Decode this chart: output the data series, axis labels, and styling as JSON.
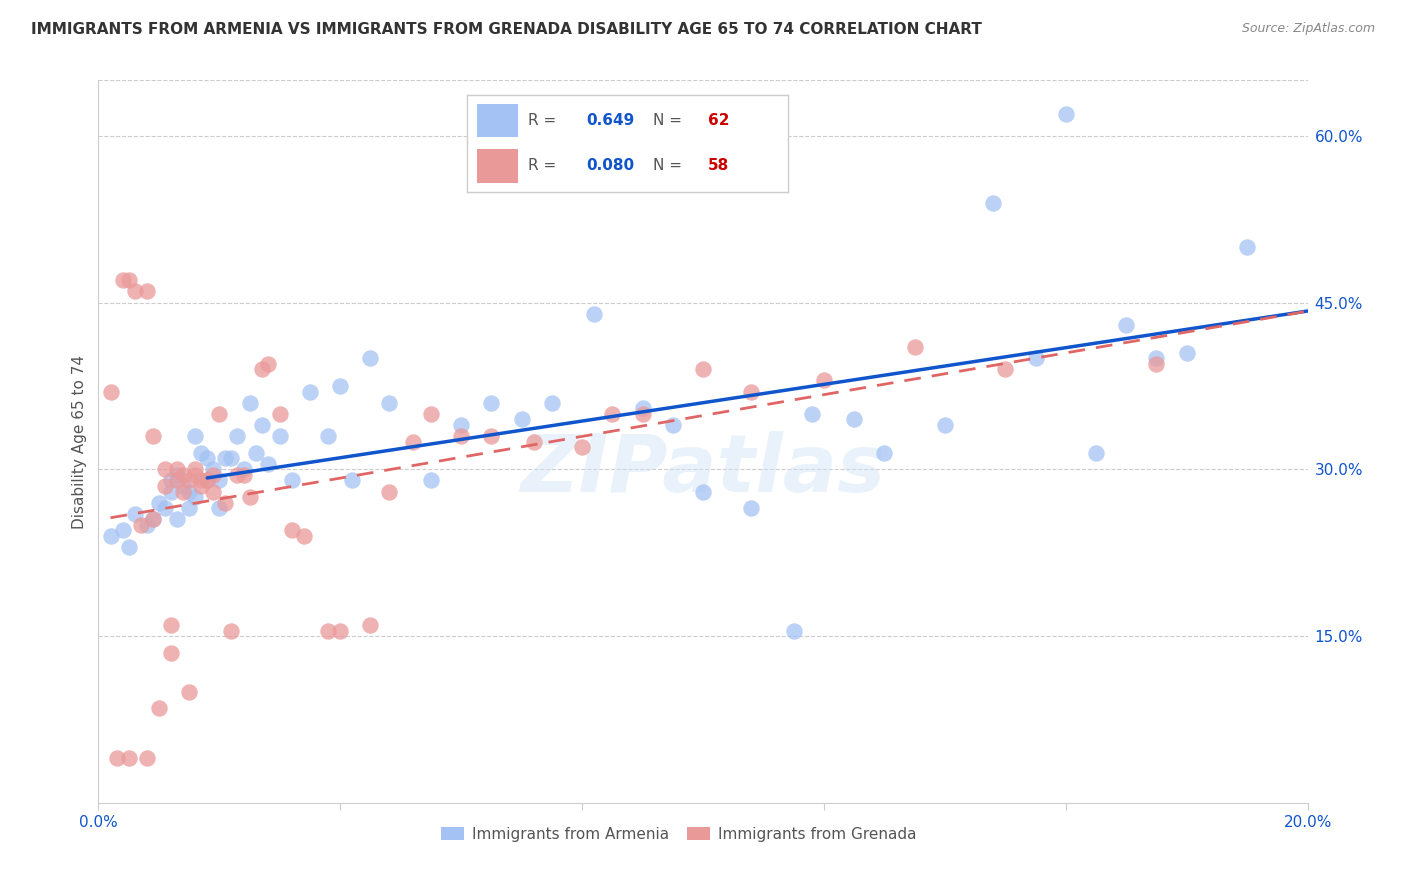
{
  "title": "IMMIGRANTS FROM ARMENIA VS IMMIGRANTS FROM GRENADA DISABILITY AGE 65 TO 74 CORRELATION CHART",
  "source": "Source: ZipAtlas.com",
  "ylabel": "Disability Age 65 to 74",
  "xlim": [
    0.0,
    0.2
  ],
  "ylim": [
    0.0,
    0.65
  ],
  "xticks": [
    0.0,
    0.04,
    0.08,
    0.12,
    0.16,
    0.2
  ],
  "yticks_right": [
    0.15,
    0.3,
    0.45,
    0.6
  ],
  "ytick_labels_right": [
    "15.0%",
    "30.0%",
    "45.0%",
    "60.0%"
  ],
  "xtick_labels": [
    "0.0%",
    "",
    "",
    "",
    "",
    "20.0%"
  ],
  "armenia_R": 0.649,
  "armenia_N": 62,
  "grenada_R": 0.08,
  "grenada_N": 58,
  "armenia_color": "#a4c2f4",
  "grenada_color": "#ea9999",
  "trend_armenia_color": "#1155cc",
  "trend_grenada_color": "#e06666",
  "watermark": "ZIPatlas",
  "legend_label_armenia": "Immigrants from Armenia",
  "legend_label_grenada": "Immigrants from Grenada",
  "armenia_x": [
    0.002,
    0.004,
    0.005,
    0.006,
    0.008,
    0.009,
    0.01,
    0.011,
    0.012,
    0.012,
    0.013,
    0.013,
    0.014,
    0.015,
    0.015,
    0.016,
    0.016,
    0.017,
    0.018,
    0.018,
    0.019,
    0.02,
    0.02,
    0.021,
    0.022,
    0.023,
    0.024,
    0.025,
    0.026,
    0.027,
    0.028,
    0.03,
    0.032,
    0.035,
    0.038,
    0.04,
    0.042,
    0.045,
    0.048,
    0.055,
    0.06,
    0.065,
    0.07,
    0.075,
    0.082,
    0.09,
    0.095,
    0.1,
    0.108,
    0.115,
    0.118,
    0.125,
    0.13,
    0.14,
    0.148,
    0.155,
    0.16,
    0.165,
    0.17,
    0.175,
    0.18,
    0.19
  ],
  "armenia_y": [
    0.24,
    0.245,
    0.23,
    0.26,
    0.25,
    0.255,
    0.27,
    0.265,
    0.29,
    0.28,
    0.295,
    0.255,
    0.285,
    0.28,
    0.265,
    0.33,
    0.275,
    0.315,
    0.29,
    0.31,
    0.3,
    0.29,
    0.265,
    0.31,
    0.31,
    0.33,
    0.3,
    0.36,
    0.315,
    0.34,
    0.305,
    0.33,
    0.29,
    0.37,
    0.33,
    0.375,
    0.29,
    0.4,
    0.36,
    0.29,
    0.34,
    0.36,
    0.345,
    0.36,
    0.44,
    0.355,
    0.34,
    0.28,
    0.265,
    0.155,
    0.35,
    0.345,
    0.315,
    0.34,
    0.54,
    0.4,
    0.62,
    0.315,
    0.43,
    0.4,
    0.405,
    0.5
  ],
  "grenada_x": [
    0.002,
    0.003,
    0.004,
    0.005,
    0.005,
    0.006,
    0.007,
    0.008,
    0.008,
    0.009,
    0.009,
    0.01,
    0.011,
    0.011,
    0.012,
    0.012,
    0.013,
    0.013,
    0.014,
    0.014,
    0.015,
    0.015,
    0.016,
    0.016,
    0.017,
    0.017,
    0.018,
    0.019,
    0.019,
    0.02,
    0.021,
    0.022,
    0.023,
    0.024,
    0.025,
    0.027,
    0.028,
    0.03,
    0.032,
    0.034,
    0.038,
    0.04,
    0.045,
    0.048,
    0.052,
    0.055,
    0.06,
    0.065,
    0.072,
    0.08,
    0.085,
    0.09,
    0.1,
    0.108,
    0.12,
    0.135,
    0.15,
    0.175
  ],
  "grenada_y": [
    0.37,
    0.04,
    0.47,
    0.47,
    0.04,
    0.46,
    0.25,
    0.04,
    0.46,
    0.255,
    0.33,
    0.085,
    0.285,
    0.3,
    0.135,
    0.16,
    0.29,
    0.3,
    0.28,
    0.295,
    0.1,
    0.29,
    0.295,
    0.3,
    0.29,
    0.285,
    0.29,
    0.295,
    0.28,
    0.35,
    0.27,
    0.155,
    0.295,
    0.295,
    0.275,
    0.39,
    0.395,
    0.35,
    0.245,
    0.24,
    0.155,
    0.155,
    0.16,
    0.28,
    0.325,
    0.35,
    0.33,
    0.33,
    0.325,
    0.32,
    0.35,
    0.35,
    0.39,
    0.37,
    0.38,
    0.41,
    0.39,
    0.395
  ],
  "trend_armenia_start_x": 0.018,
  "trend_armenia_end_x": 0.2,
  "trend_grenada_start_x": 0.002,
  "trend_grenada_end_x": 0.2
}
